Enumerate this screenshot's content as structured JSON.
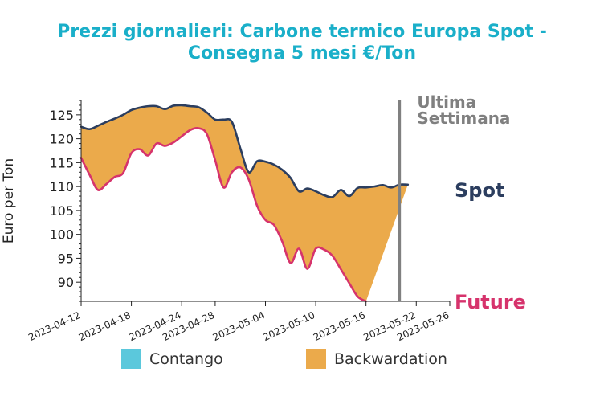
{
  "chart_data": {
    "type": "area",
    "title_lines": [
      "Prezzi giornalieri: Carbone termico Europa Spot -",
      "Consegna 5 mesi €/Ton"
    ],
    "ylabel": "Euro per Ton",
    "xlabel": "",
    "ylim": [
      86,
      128
    ],
    "y_ticks": [
      90,
      95,
      100,
      105,
      110,
      115,
      120,
      125
    ],
    "x_start": "2023-04-12",
    "x_end": "2023-05-26",
    "x_tick_labels": [
      "2023-04-12",
      "2023-04-18",
      "2023-04-24",
      "2023-04-28",
      "2023-05-04",
      "2023-05-10",
      "2023-05-16",
      "2023-05-22",
      "2023-05-26"
    ],
    "series": [
      {
        "name": "Spot",
        "color": "#2c3e5f",
        "points": [
          [
            "2023-04-12",
            122.5
          ],
          [
            "2023-04-13",
            122.0
          ],
          [
            "2023-04-14",
            122.7
          ],
          [
            "2023-04-15",
            123.5
          ],
          [
            "2023-04-16",
            124.2
          ],
          [
            "2023-04-17",
            125.0
          ],
          [
            "2023-04-18",
            126.0
          ],
          [
            "2023-04-19",
            126.5
          ],
          [
            "2023-04-20",
            126.8
          ],
          [
            "2023-04-21",
            126.8
          ],
          [
            "2023-04-22",
            126.2
          ],
          [
            "2023-04-23",
            126.9
          ],
          [
            "2023-04-24",
            127.0
          ],
          [
            "2023-04-25",
            126.8
          ],
          [
            "2023-04-26",
            126.6
          ],
          [
            "2023-04-27",
            125.5
          ],
          [
            "2023-04-28",
            124.0
          ],
          [
            "2023-04-29",
            124.0
          ],
          [
            "2023-04-30",
            123.5
          ],
          [
            "2023-05-01",
            118.0
          ],
          [
            "2023-05-02",
            113.0
          ],
          [
            "2023-05-03",
            115.3
          ],
          [
            "2023-05-04",
            115.2
          ],
          [
            "2023-05-05",
            114.6
          ],
          [
            "2023-05-06",
            113.5
          ],
          [
            "2023-05-07",
            111.8
          ],
          [
            "2023-05-08",
            109.0
          ],
          [
            "2023-05-09",
            109.6
          ],
          [
            "2023-05-10",
            109.0
          ],
          [
            "2023-05-11",
            108.2
          ],
          [
            "2023-05-12",
            107.8
          ],
          [
            "2023-05-13",
            109.3
          ],
          [
            "2023-05-14",
            108.0
          ],
          [
            "2023-05-15",
            109.7
          ],
          [
            "2023-05-16",
            109.8
          ],
          [
            "2023-05-17",
            110.0
          ],
          [
            "2023-05-18",
            110.3
          ],
          [
            "2023-05-19",
            109.8
          ],
          [
            "2023-05-20",
            110.4
          ],
          [
            "2023-05-21",
            110.4
          ]
        ]
      },
      {
        "name": "Future",
        "color": "#d6336c",
        "points": [
          [
            "2023-04-12",
            116.0
          ],
          [
            "2023-04-13",
            112.5
          ],
          [
            "2023-04-14",
            109.3
          ],
          [
            "2023-04-15",
            110.5
          ],
          [
            "2023-04-16",
            112.0
          ],
          [
            "2023-04-17",
            112.8
          ],
          [
            "2023-04-18",
            117.0
          ],
          [
            "2023-04-19",
            117.8
          ],
          [
            "2023-04-20",
            116.5
          ],
          [
            "2023-04-21",
            119.0
          ],
          [
            "2023-04-22",
            118.5
          ],
          [
            "2023-04-23",
            119.2
          ],
          [
            "2023-04-24",
            120.5
          ],
          [
            "2023-04-25",
            121.8
          ],
          [
            "2023-04-26",
            122.2
          ],
          [
            "2023-04-27",
            121.0
          ],
          [
            "2023-04-28",
            115.5
          ],
          [
            "2023-04-29",
            109.8
          ],
          [
            "2023-04-30",
            113.0
          ],
          [
            "2023-05-01",
            114.0
          ],
          [
            "2023-05-02",
            111.5
          ],
          [
            "2023-05-03",
            106.0
          ],
          [
            "2023-05-04",
            103.0
          ],
          [
            "2023-05-05",
            102.0
          ],
          [
            "2023-05-06",
            98.5
          ],
          [
            "2023-05-07",
            94.0
          ],
          [
            "2023-05-08",
            97.0
          ],
          [
            "2023-05-09",
            92.8
          ],
          [
            "2023-05-10",
            97.0
          ],
          [
            "2023-05-11",
            96.8
          ],
          [
            "2023-05-12",
            95.5
          ],
          [
            "2023-05-13",
            92.7
          ],
          [
            "2023-05-14",
            89.8
          ],
          [
            "2023-05-15",
            87.0
          ],
          [
            "2023-05-16",
            86.0
          ]
        ]
      }
    ],
    "vline": {
      "x": "2023-05-20",
      "label_lines": [
        "Ultima",
        "Settimana"
      ],
      "color": "#808080"
    },
    "legend": {
      "placement": "bottom",
      "items": [
        {
          "label": "Contango",
          "color": "#5bc8dc"
        },
        {
          "label": "Backwardation",
          "color": "#ebaa4b"
        }
      ]
    },
    "grid": false
  }
}
